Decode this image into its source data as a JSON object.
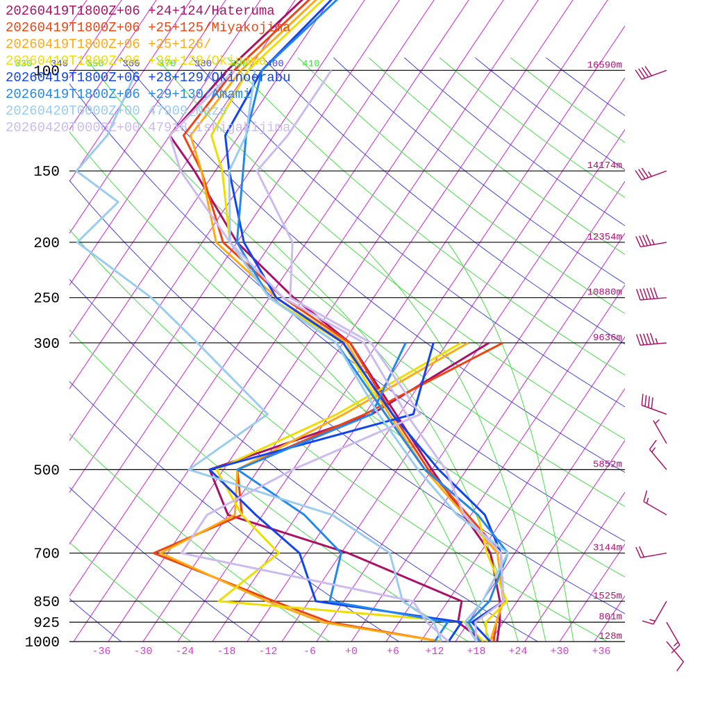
{
  "chart_data": {
    "type": "line",
    "title": "",
    "xlabel": "",
    "ylabel": "",
    "y_axis": {
      "scale": "log-pressure",
      "ylim": [
        1000,
        100
      ],
      "pressure_levels": [
        {
          "p": 100,
          "label": "100",
          "height": "16590m"
        },
        {
          "p": 150,
          "label": "150",
          "height": "14174m"
        },
        {
          "p": 200,
          "label": "200",
          "height": "12354m"
        },
        {
          "p": 250,
          "label": "250",
          "height": "10880m"
        },
        {
          "p": 300,
          "label": "300",
          "height": "9636m"
        },
        {
          "p": 500,
          "label": "500",
          "height": "5852m"
        },
        {
          "p": 700,
          "label": "700",
          "height": "3144m"
        },
        {
          "p": 850,
          "label": "850",
          "height": "1525m"
        },
        {
          "p": 925,
          "label": "925",
          "height": "801m"
        },
        {
          "p": 1000,
          "label": "1000",
          "height": "128m"
        }
      ]
    },
    "x_axis": {
      "skew": true,
      "xlim": [
        -40,
        40
      ],
      "tick_labels": [
        "-36",
        "-30",
        "-24",
        "-18",
        "-12",
        "-6",
        "+0",
        "+6",
        "+12",
        "+18",
        "+24",
        "+30",
        "+36"
      ],
      "tick_values": [
        -36,
        -30,
        -24,
        -18,
        -12,
        -6,
        0,
        6,
        12,
        18,
        24,
        30,
        36
      ]
    },
    "isotherm_labels": [
      "-66",
      "-60",
      "-54",
      "-48"
    ],
    "isotherm_label_values": [
      -66,
      -60,
      -54,
      -48
    ],
    "theta_labels": [
      "310",
      "320",
      "330",
      "340",
      "350",
      "360",
      "370",
      "380",
      "390",
      "400",
      "410"
    ],
    "theta_values": [
      310,
      320,
      330,
      340,
      350,
      360,
      370,
      380,
      390,
      400,
      410
    ],
    "grid": true,
    "legend_placement": "top-left",
    "series": [
      {
        "name": "20260419T1800Z+06 +24+124/Hateruma",
        "color": "#aa1166",
        "temperature": [
          [
            1000,
            21
          ],
          [
            925,
            19.5
          ],
          [
            850,
            17.5
          ],
          [
            700,
            11.5
          ],
          [
            500,
            -5
          ],
          [
            400,
            -15.5
          ],
          [
            300,
            -29
          ],
          [
            250,
            -41.5
          ],
          [
            200,
            -55
          ],
          [
            150,
            -68
          ],
          [
            130,
            -75
          ],
          [
            100,
            -73
          ],
          [
            70,
            -68
          ],
          [
            50,
            -57
          ]
        ],
        "dewpoint": [
          [
            1000,
            19
          ],
          [
            925,
            13.5
          ],
          [
            850,
            12
          ],
          [
            700,
            -9
          ],
          [
            600,
            -30
          ],
          [
            500,
            -37
          ],
          [
            400,
            -19
          ],
          [
            300,
            -9
          ]
        ]
      },
      {
        "name": "20260419T1800Z+06 +25+125/Miyakojima",
        "color": "#ee4411",
        "temperature": [
          [
            1000,
            20.5
          ],
          [
            925,
            19
          ],
          [
            850,
            18
          ],
          [
            700,
            13
          ],
          [
            500,
            -5.5
          ],
          [
            400,
            -16
          ],
          [
            300,
            -29
          ],
          [
            250,
            -43
          ],
          [
            200,
            -57
          ],
          [
            150,
            -67
          ],
          [
            130,
            -73
          ],
          [
            100,
            -72
          ],
          [
            70,
            -67
          ],
          [
            50,
            -57
          ]
        ],
        "dewpoint": [
          [
            1000,
            13
          ],
          [
            925,
            -5
          ],
          [
            850,
            -15
          ],
          [
            700,
            -37
          ],
          [
            600,
            -28
          ],
          [
            500,
            -33
          ],
          [
            400,
            -20
          ],
          [
            300,
            -7
          ]
        ]
      },
      {
        "name": "20260419T1800Z+06 +25+126/",
        "color": "#ffaa11",
        "temperature": [
          [
            1000,
            20
          ],
          [
            925,
            19
          ],
          [
            850,
            18
          ],
          [
            700,
            12.5
          ],
          [
            500,
            -6
          ],
          [
            400,
            -16.5
          ],
          [
            300,
            -29.5
          ],
          [
            250,
            -44
          ],
          [
            200,
            -58
          ],
          [
            150,
            -67
          ],
          [
            130,
            -72
          ],
          [
            100,
            -71
          ],
          [
            70,
            -66
          ],
          [
            50,
            -56
          ]
        ],
        "dewpoint": [
          [
            1000,
            13
          ],
          [
            925,
            -6
          ],
          [
            850,
            -16
          ],
          [
            700,
            -36
          ],
          [
            600,
            -29
          ],
          [
            500,
            -33
          ],
          [
            400,
            -23
          ],
          [
            300,
            -12
          ]
        ]
      },
      {
        "name": "20260419T1800Z+06 +26+128/Okinawa",
        "color": "#eedd00",
        "temperature": [
          [
            1000,
            19.5
          ],
          [
            925,
            17.5
          ],
          [
            850,
            18.5
          ],
          [
            700,
            11
          ],
          [
            600,
            6
          ],
          [
            500,
            -6
          ],
          [
            400,
            -17
          ],
          [
            300,
            -30
          ],
          [
            250,
            -45
          ],
          [
            200,
            -56
          ],
          [
            150,
            -64
          ],
          [
            130,
            -69
          ],
          [
            100,
            -70
          ],
          [
            70,
            -65
          ],
          [
            50,
            -55
          ]
        ],
        "dewpoint": [
          [
            1000,
            19
          ],
          [
            925,
            14.5
          ],
          [
            850,
            -23
          ],
          [
            700,
            -19
          ],
          [
            600,
            -28
          ],
          [
            500,
            -36
          ],
          [
            400,
            -24
          ],
          [
            300,
            -13
          ]
        ]
      },
      {
        "name": "20260419T1800Z+06 +28+129/Okinoerabu",
        "color": "#1144ee",
        "temperature": [
          [
            1000,
            20
          ],
          [
            925,
            15.5
          ],
          [
            850,
            18
          ],
          [
            700,
            13
          ],
          [
            600,
            7
          ],
          [
            500,
            -4
          ],
          [
            400,
            -16
          ],
          [
            300,
            -30
          ],
          [
            250,
            -44
          ],
          [
            200,
            -54
          ],
          [
            150,
            -63
          ],
          [
            130,
            -67
          ],
          [
            100,
            -68
          ],
          [
            70,
            -64
          ],
          [
            50,
            -54
          ]
        ],
        "dewpoint": [
          [
            1000,
            14
          ],
          [
            925,
            14
          ],
          [
            850,
            -9
          ],
          [
            700,
            -16
          ],
          [
            600,
            -26
          ],
          [
            500,
            -37
          ],
          [
            400,
            -13
          ],
          [
            300,
            -17
          ]
        ]
      },
      {
        "name": "20260419T1800Z+06 +29+130/Amami",
        "color": "#2288ee",
        "temperature": [
          [
            1000,
            18.5
          ],
          [
            925,
            15
          ],
          [
            850,
            16
          ],
          [
            700,
            14
          ],
          [
            600,
            6
          ],
          [
            500,
            -6
          ],
          [
            400,
            -17
          ],
          [
            300,
            -31
          ],
          [
            250,
            -45
          ],
          [
            200,
            -55
          ],
          [
            150,
            -61
          ],
          [
            130,
            -64
          ],
          [
            100,
            -68
          ],
          [
            70,
            -63
          ],
          [
            50,
            -51
          ]
        ],
        "dewpoint": [
          [
            1000,
            12
          ],
          [
            925,
            12
          ],
          [
            850,
            -7
          ],
          [
            700,
            -10
          ],
          [
            600,
            -19
          ],
          [
            500,
            -33
          ],
          [
            400,
            -19
          ],
          [
            300,
            -21
          ]
        ]
      },
      {
        "name": "20260420T0000Z+00 47909_Naze",
        "color": "#99ccee",
        "temperature": [
          [
            1000,
            18
          ],
          [
            925,
            14.5
          ],
          [
            850,
            15
          ],
          [
            700,
            14
          ],
          [
            600,
            3
          ],
          [
            500,
            -7
          ],
          [
            400,
            -18
          ],
          [
            300,
            -31
          ],
          [
            250,
            -45
          ],
          [
            200,
            -56
          ],
          [
            150,
            -63
          ],
          [
            130,
            -64
          ],
          [
            100,
            -69
          ]
        ],
        "dewpoint": [
          [
            1000,
            13
          ],
          [
            925,
            10
          ],
          [
            850,
            3.5
          ],
          [
            700,
            -3
          ],
          [
            600,
            -15
          ],
          [
            500,
            -40
          ],
          [
            400,
            -34
          ],
          [
            300,
            -51
          ],
          [
            250,
            -62
          ],
          [
            200,
            -78
          ],
          [
            170,
            -76
          ],
          [
            150,
            -85
          ],
          [
            130,
            -84
          ],
          [
            100,
            -86
          ]
        ],
        "dashed": false
      },
      {
        "name": "20260420T0000Z+00 47918_Ishigakijima",
        "color": "#ccbbee",
        "temperature": [
          [
            1000,
            18
          ],
          [
            925,
            16
          ],
          [
            850,
            18
          ],
          [
            700,
            13
          ],
          [
            600,
            4
          ],
          [
            500,
            -3
          ],
          [
            400,
            -14
          ],
          [
            300,
            -27
          ],
          [
            250,
            -43
          ],
          [
            200,
            -56
          ],
          [
            150,
            -70
          ],
          [
            130,
            -75
          ],
          [
            100,
            -72
          ]
        ],
        "dewpoint": [
          [
            1000,
            14
          ],
          [
            925,
            9
          ],
          [
            850,
            5
          ],
          [
            700,
            -33
          ],
          [
            600,
            -33
          ],
          [
            500,
            -25
          ],
          [
            400,
            -12
          ],
          [
            300,
            -26
          ],
          [
            250,
            -42
          ],
          [
            200,
            -47
          ],
          [
            150,
            -59
          ],
          [
            130,
            -58
          ],
          [
            100,
            -58
          ]
        ]
      }
    ],
    "wind_barbs": [
      {
        "p": 1000,
        "speed_kt": 10,
        "dir": 140
      },
      {
        "p": 925,
        "speed_kt": 15,
        "dir": 150
      },
      {
        "p": 850,
        "speed_kt": 15,
        "dir": 210
      },
      {
        "p": 700,
        "speed_kt": 20,
        "dir": 260
      },
      {
        "p": 600,
        "speed_kt": 15,
        "dir": 300
      },
      {
        "p": 500,
        "speed_kt": 15,
        "dir": 320
      },
      {
        "p": 450,
        "speed_kt": 5,
        "dir": 330
      },
      {
        "p": 400,
        "speed_kt": 40,
        "dir": 290
      },
      {
        "p": 300,
        "speed_kt": 55,
        "dir": 265
      },
      {
        "p": 250,
        "speed_kt": 60,
        "dir": 265
      },
      {
        "p": 200,
        "speed_kt": 45,
        "dir": 260
      },
      {
        "p": 150,
        "speed_kt": 35,
        "dir": 250
      },
      {
        "p": 100,
        "speed_kt": 40,
        "dir": 250
      },
      {
        "p": 70,
        "speed_kt": 15,
        "dir": 240
      },
      {
        "p": 55,
        "speed_kt": 5,
        "dir": 250
      }
    ]
  }
}
